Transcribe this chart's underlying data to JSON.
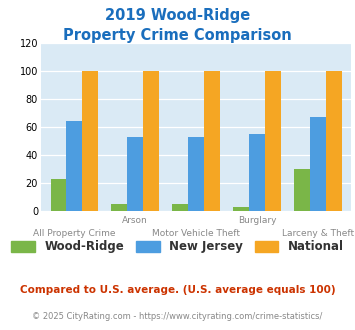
{
  "title_line1": "2019 Wood-Ridge",
  "title_line2": "Property Crime Comparison",
  "categories": [
    "All Property Crime",
    "Arson",
    "Motor Vehicle Theft",
    "Burglary",
    "Larceny & Theft"
  ],
  "wood_ridge": [
    23,
    5,
    5,
    3,
    30
  ],
  "new_jersey": [
    64,
    53,
    53,
    55,
    67
  ],
  "national": [
    100,
    100,
    100,
    100,
    100
  ],
  "bar_colors": {
    "wood_ridge": "#7ab648",
    "new_jersey": "#4d9de0",
    "national": "#f5a623"
  },
  "ylim": [
    0,
    120
  ],
  "yticks": [
    0,
    20,
    40,
    60,
    80,
    100,
    120
  ],
  "legend_labels": [
    "Wood-Ridge",
    "New Jersey",
    "National"
  ],
  "footnote1": "Compared to U.S. average. (U.S. average equals 100)",
  "footnote2": "© 2025 CityRating.com - https://www.cityrating.com/crime-statistics/",
  "title_color": "#1a6ebd",
  "footnote1_color": "#cc3300",
  "footnote2_color": "#888888",
  "bg_color": "#daeaf5",
  "top_row_labels": {
    "1": "Arson",
    "3": "Burglary"
  },
  "bot_row_labels": {
    "0": "All Property Crime",
    "2": "Motor Vehicle Theft",
    "4": "Larceny & Theft"
  }
}
